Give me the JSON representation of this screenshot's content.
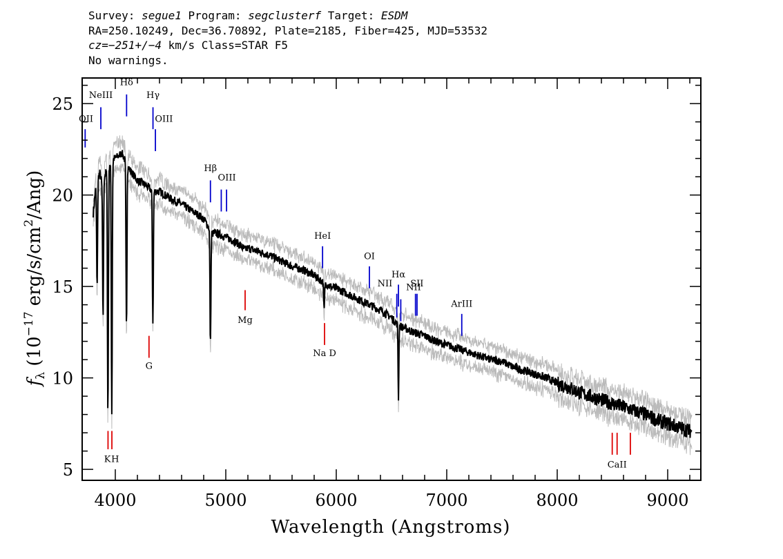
{
  "header": {
    "line1": [
      {
        "text": "Survey: ",
        "italic": false
      },
      {
        "text": "segue1",
        "italic": true
      },
      {
        "text": " Program: ",
        "italic": false
      },
      {
        "text": "segclusterf",
        "italic": true
      },
      {
        "text": " Target: ",
        "italic": false
      },
      {
        "text": "ESDM",
        "italic": true
      }
    ],
    "line2": "RA=250.10249, Dec=36.70892, Plate=2185, Fiber=425, MJD=53532",
    "line3": [
      {
        "text": "cz=",
        "italic": true
      },
      {
        "text": "−251+/−4",
        "italic": true
      },
      {
        "text": " km/s Class=STAR F5",
        "italic": false
      }
    ],
    "line4": "No warnings."
  },
  "chart_data": {
    "type": "line",
    "xlabel": "Wavelength (Angstroms)",
    "ylabel_parts": {
      "f": "f",
      "sub": "λ",
      "pre": " (10",
      "exp": "−17",
      "post": " erg/s/cm",
      "exp2": "2",
      "post2": "/Ang)"
    },
    "xlim": [
      3700,
      9300
    ],
    "ylim": [
      4.4,
      26.4
    ],
    "xticks": [
      4000,
      5000,
      6000,
      7000,
      8000,
      9000
    ],
    "xtick_labels": [
      "4000",
      "5000",
      "6000",
      "7000",
      "8000",
      "9000"
    ],
    "yticks": [
      5,
      10,
      15,
      20,
      25
    ],
    "ytick_labels": [
      "5",
      "10",
      "15",
      "20",
      "25"
    ],
    "grid": false,
    "series": [
      {
        "role": "flux",
        "color": "#000000",
        "x": [
          3800,
          3830,
          3860,
          3880,
          3900,
          3920,
          3960,
          3990,
          4020,
          4060,
          4080,
          4110,
          4140,
          4200,
          4260,
          4300,
          4340,
          4400,
          4500,
          4600,
          4700,
          4780,
          4820,
          4850,
          4880,
          4920,
          5000,
          5100,
          5170,
          5200,
          5300,
          5400,
          5500,
          5600,
          5700,
          5800,
          5890,
          5950,
          6000,
          6100,
          6200,
          6300,
          6400,
          6500,
          6540,
          6563,
          6590,
          6700,
          6800,
          6900,
          7000,
          7100,
          7200,
          7300,
          7400,
          7500,
          7600,
          7700,
          7800,
          7900,
          8000,
          8100,
          8200,
          8300,
          8400,
          8500,
          8600,
          8700,
          8800,
          8900,
          9000,
          9100,
          9200
        ],
        "y": [
          19.0,
          20.8,
          21.2,
          20.6,
          21.0,
          21.3,
          21.8,
          22.0,
          22.1,
          22.3,
          22.0,
          21.6,
          21.3,
          20.8,
          20.6,
          20.4,
          20.2,
          20.2,
          19.8,
          19.5,
          19.1,
          18.8,
          18.5,
          18.2,
          17.9,
          17.9,
          17.7,
          17.4,
          17.0,
          17.1,
          16.9,
          16.7,
          16.4,
          16.1,
          15.9,
          15.6,
          15.2,
          15.0,
          14.9,
          14.6,
          14.3,
          14.0,
          13.7,
          13.3,
          13.0,
          12.9,
          12.8,
          12.5,
          12.3,
          12.0,
          11.8,
          11.6,
          11.4,
          11.2,
          11.0,
          10.9,
          10.6,
          10.4,
          10.2,
          10.0,
          9.7,
          9.5,
          9.2,
          9.0,
          8.8,
          8.6,
          8.4,
          8.2,
          8.0,
          7.7,
          7.5,
          7.3,
          7.1
        ]
      },
      {
        "role": "error",
        "color": "#bbbbbb",
        "y_offset": 0.7
      }
    ],
    "absorption_dips": [
      {
        "x": 3835,
        "depth": 6.0
      },
      {
        "x": 3889,
        "depth": 7.5
      },
      {
        "x": 3933,
        "depth": 13.5
      },
      {
        "x": 3968,
        "depth": 13.8
      },
      {
        "x": 4101,
        "depth": 9.0
      },
      {
        "x": 4340,
        "depth": 7.2
      },
      {
        "x": 4861,
        "depth": 6.3
      },
      {
        "x": 5890,
        "depth": 1.5
      },
      {
        "x": 6563,
        "depth": 4.0
      }
    ],
    "emission_lines": [
      {
        "label": "OII",
        "x": 3727,
        "y1": 22.6,
        "y2": 23.6,
        "lx": 3735,
        "ly": 24.0
      },
      {
        "label": "NeIII",
        "x": 3869,
        "y1": 23.6,
        "y2": 24.8,
        "lx": 3869,
        "ly": 25.3
      },
      {
        "label": "Hδ",
        "x": 4102,
        "y1": 24.3,
        "y2": 25.5,
        "lx": 4102,
        "ly": 26.0
      },
      {
        "label": "Hγ",
        "x": 4341,
        "y1": 23.6,
        "y2": 24.8,
        "lx": 4341,
        "ly": 25.3
      },
      {
        "label": "OIII",
        "x": 4363,
        "y1": 22.4,
        "y2": 23.6,
        "lx": 4440,
        "ly": 24.0
      },
      {
        "label": "Hβ",
        "x": 4861,
        "y1": 19.6,
        "y2": 20.8,
        "lx": 4861,
        "ly": 21.3
      },
      {
        "label": "OIII",
        "x": 4959,
        "y1": 19.1,
        "y2": 20.3,
        "lx": 5010,
        "ly": 20.8
      },
      {
        "label": "OIII",
        "x": 5007,
        "y1": 19.1,
        "y2": 20.3,
        "lx": "",
        "ly": ""
      },
      {
        "label": "HeI",
        "x": 5876,
        "y1": 16.0,
        "y2": 17.2,
        "lx": 5876,
        "ly": 17.6
      },
      {
        "label": "OI",
        "x": 6300,
        "y1": 14.9,
        "y2": 16.1,
        "lx": 6300,
        "ly": 16.5
      },
      {
        "label": "NII",
        "x": 6548,
        "y1": 13.3,
        "y2": 14.6,
        "lx": 6440,
        "ly": 15.0
      },
      {
        "label": "Hα",
        "x": 6563,
        "y1": 13.9,
        "y2": 15.1,
        "lx": 6563,
        "ly": 15.5
      },
      {
        "label": "NII",
        "x": 6584,
        "y1": 13.1,
        "y2": 14.3,
        "lx": 6700,
        "ly": 14.8
      },
      {
        "label": "SII",
        "x": 6717,
        "y1": 13.4,
        "y2": 14.6,
        "lx": 6730,
        "ly": 15.0
      },
      {
        "label": "SII",
        "x": 6731,
        "y1": 13.4,
        "y2": 14.6,
        "lx": "",
        "ly": ""
      },
      {
        "label": "ArIII",
        "x": 7136,
        "y1": 12.3,
        "y2": 13.5,
        "lx": 7136,
        "ly": 13.9
      }
    ],
    "absorption_lines": [
      {
        "label": "K",
        "x": 3934,
        "y1": 6.1,
        "y2": 7.1,
        "lx": 3929,
        "ly": 5.4
      },
      {
        "label": "H",
        "x": 3969,
        "y1": 6.1,
        "y2": 7.1,
        "lx": 3999,
        "ly": 5.4
      },
      {
        "label": "G",
        "x": 4305,
        "y1": 11.1,
        "y2": 12.3,
        "lx": 4305,
        "ly": 10.5
      },
      {
        "label": "Mg",
        "x": 5175,
        "y1": 13.7,
        "y2": 14.8,
        "lx": 5175,
        "ly": 13.0
      },
      {
        "label": "Na D",
        "x": 5894,
        "y1": 11.8,
        "y2": 13.0,
        "lx": 5894,
        "ly": 11.2
      },
      {
        "label": "CaII",
        "x": 8498,
        "y1": 5.8,
        "y2": 7.0,
        "lx": 8542,
        "ly": 5.1
      },
      {
        "label": "CaII",
        "x": 8542,
        "y1": 5.8,
        "y2": 7.0,
        "lx": "",
        "ly": ""
      },
      {
        "label": "CaII",
        "x": 8662,
        "y1": 5.8,
        "y2": 7.0,
        "lx": "",
        "ly": ""
      }
    ],
    "emission_color": "#0000cc",
    "absorption_color": "#dd0000"
  }
}
